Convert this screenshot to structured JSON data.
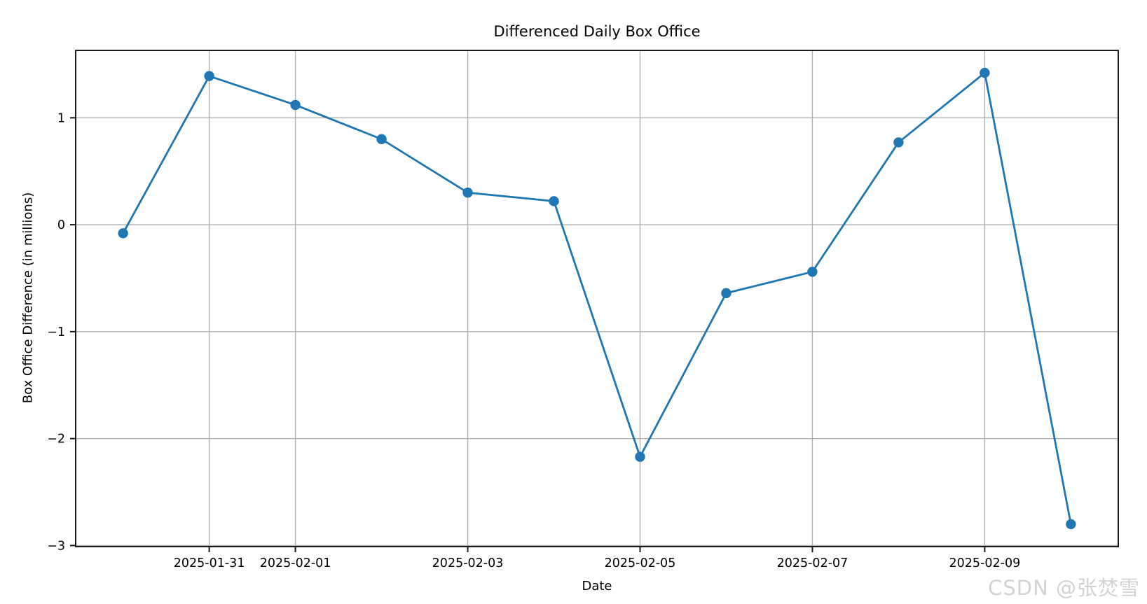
{
  "watermark": "CSDN @张焚雪",
  "chart_data": {
    "type": "line",
    "title": "Differenced Daily Box Office",
    "xlabel": "Date",
    "ylabel": "Box Office Difference (in millions)",
    "x": [
      "2025-01-30",
      "2025-01-31",
      "2025-02-01",
      "2025-02-02",
      "2025-02-03",
      "2025-02-04",
      "2025-02-05",
      "2025-02-06",
      "2025-02-07",
      "2025-02-08",
      "2025-02-09",
      "2025-02-10"
    ],
    "values": [
      -0.08,
      1.39,
      1.12,
      0.8,
      0.3,
      0.22,
      -2.17,
      -0.64,
      -0.44,
      0.77,
      1.42,
      -2.8
    ],
    "xticks": {
      "indices": [
        1,
        2,
        4,
        6,
        8,
        10
      ],
      "labels": [
        "2025-01-31",
        "2025-02-01",
        "2025-02-03",
        "2025-02-05",
        "2025-02-07",
        "2025-02-09"
      ]
    },
    "yticks": {
      "values": [
        1,
        0,
        -1,
        -2,
        -3
      ],
      "labels": [
        "1",
        "0",
        "−1",
        "−2",
        "−3"
      ]
    },
    "ylim": [
      -3.01,
      1.63
    ],
    "x_margin": 0.55,
    "grid": true,
    "legend_position": "none",
    "line_color": "#1f77b4",
    "grid_color": "#b0b0b0",
    "spine_color": "#1a1a1a",
    "background_color": "#ffffff"
  }
}
